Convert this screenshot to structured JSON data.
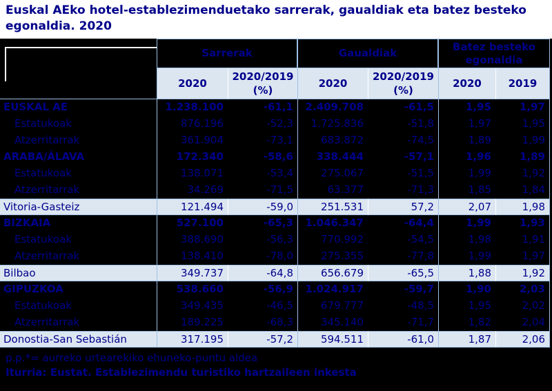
{
  "title": {
    "line1": "Euskal AEko hotel-establezimenduetako sarrerak, gaualdiak eta batez besteko",
    "line2": "egonaldia. 2020"
  },
  "table": {
    "groups": [
      "Sarrerak",
      "Gaualdiak",
      "Batez besteko egonaldia"
    ],
    "subheaders": [
      "2020",
      "2020/2019 (%)",
      "2020",
      "2020/2019 (%)",
      "2020",
      "2019"
    ],
    "rows": [
      {
        "label": "EUSKAL AE",
        "style": "total",
        "cells": [
          "1.238.100",
          "-61,1",
          "2.409.708",
          "-61,5",
          "1,95",
          "1,97"
        ]
      },
      {
        "label": "Estatukoak",
        "style": "sub-row",
        "cells": [
          "876.196",
          "-52,3",
          "1.725.836",
          "-51,8",
          "1,97",
          "1,95"
        ]
      },
      {
        "label": "Atzerritarrak",
        "style": "sub-row",
        "cells": [
          "361.904",
          "-73,1",
          "683.872",
          "-74,5",
          "1,89",
          "1,99"
        ]
      },
      {
        "label": "ARABA/ÁLAVA",
        "style": "total",
        "cells": [
          "172.340",
          "-58,6",
          "338.444",
          "-57,1",
          "1,96",
          "1,89"
        ]
      },
      {
        "label": "Estatukoak",
        "style": "sub-row",
        "cells": [
          "138.071",
          "-53,4",
          "275.067",
          "-51,5",
          "1,99",
          "1,92"
        ]
      },
      {
        "label": "Atzerritarrak",
        "style": "sub-row",
        "cells": [
          "34.269",
          "-71,5",
          "63.377",
          "-71,3",
          "1,85",
          "1,84"
        ]
      },
      {
        "label": "Vitoria-Gasteiz",
        "style": "city",
        "cells": [
          "121.494",
          "-59,0",
          "251.531",
          "57,2",
          "2,07",
          "1,98"
        ]
      },
      {
        "label": "BIZKAIA",
        "style": "total",
        "cells": [
          "527.100",
          "-65,3",
          "1.046.347",
          "-64,4",
          "1,99",
          "1,93"
        ]
      },
      {
        "label": "Estatukoak",
        "style": "sub-row",
        "cells": [
          "388.690",
          "-56,3",
          "770.992",
          "-54,5",
          "1,98",
          "1,91"
        ]
      },
      {
        "label": "Atzerritarrak",
        "style": "sub-row",
        "cells": [
          "138.410",
          "-78,0",
          "275.355",
          "-77,8",
          "1,99",
          "1,97"
        ]
      },
      {
        "label": "Bilbao",
        "style": "city",
        "cells": [
          "349.737",
          "-64,8",
          "656.679",
          "-65,5",
          "1,88",
          "1,92"
        ]
      },
      {
        "label": "GIPUZKOA",
        "style": "total",
        "cells": [
          "538.660",
          "-56,9",
          "1.024.917",
          "-59,7",
          "1,90",
          "2,03"
        ]
      },
      {
        "label": "Estatukoak",
        "style": "sub-row",
        "cells": [
          "349.435",
          "-46,5",
          "679.777",
          "-48,5",
          "1,95",
          "2,02"
        ]
      },
      {
        "label": "Atzerritarrak",
        "style": "sub-row",
        "cells": [
          "189.225",
          "-68,3",
          "345.140",
          "-71,7",
          "1,82",
          "2,04"
        ]
      },
      {
        "label": "Donostia-San Sebastián",
        "style": "city",
        "cells": [
          "317.195",
          "-57,2",
          "594.511",
          "-61,0",
          "1,87",
          "2,06"
        ]
      }
    ]
  },
  "footer": {
    "note": "p.p.*= aurreko urtearekiko ehuneko-puntu aldea",
    "source": "Iturria: Eustat. Establezimendu turistiko hartzaileen inkesta"
  },
  "colors": {
    "navy_text": "#00008B",
    "light_row_fill": "#DCE6F1",
    "border_blue": "#9DBFE4",
    "background_black": "#000000",
    "title_background": "#FFFFFF"
  }
}
